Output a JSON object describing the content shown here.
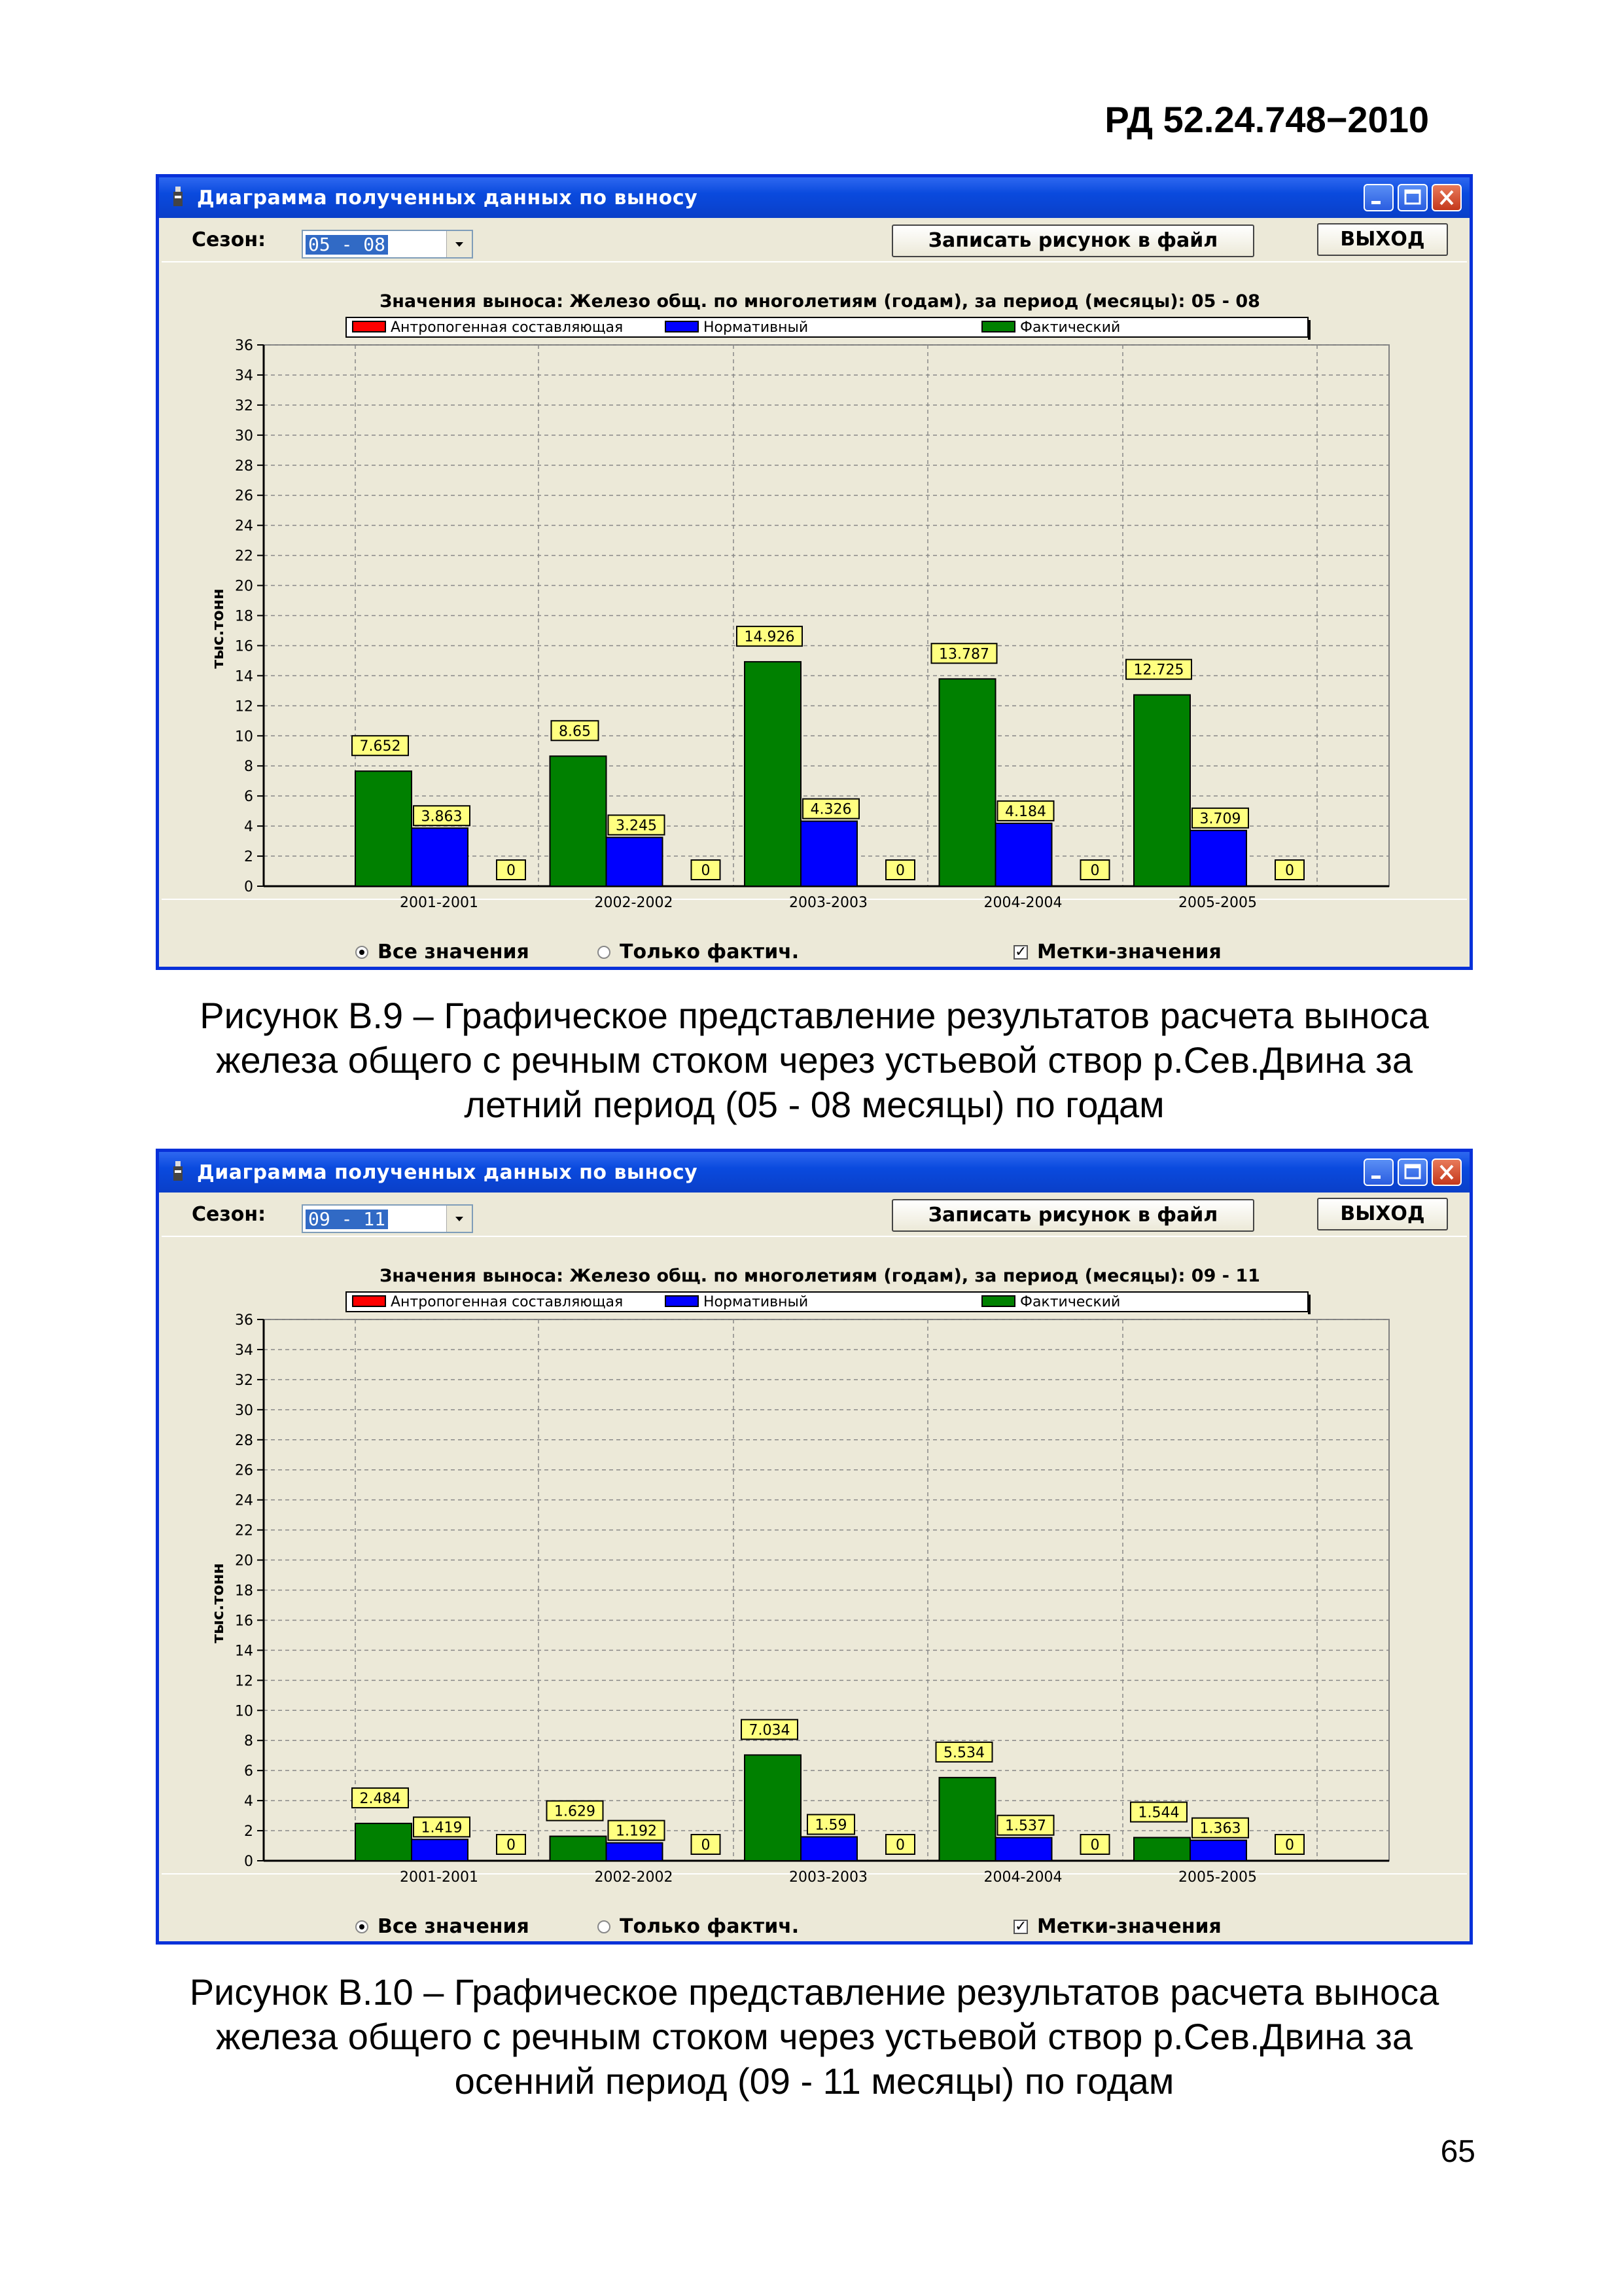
{
  "header": {
    "doc_code": "РД 52.24.748−2010"
  },
  "page_number": "65",
  "colors": {
    "anthropogenic": "#ff0000",
    "normative": "#0000ff",
    "actual": "#008000",
    "label_bg": "#ffff80",
    "titlebar": "#0a4ade"
  },
  "windows": [
    {
      "title": "Диаграмма полученных данных по выносу",
      "season_label": "Сезон:",
      "season_value": "05 - 08",
      "save_button": "Записать рисунок в файл",
      "exit_button": "ВЫХОД",
      "radio_all": "Все значения",
      "radio_actual_only": "Только фактич.",
      "checkbox_labels": "Метки-значения",
      "caption": "Рисунок В.9 – Графическое представление результатов расчета выноса железа общего с речным стоком через устьевой створ р.Сев.Двина за летний период (05 - 08 месяцы) по годам",
      "chart_data": {
        "type": "bar",
        "title": "Значения выноса: Железо общ. по многолетиям (годам), за период (месяцы): 05 - 08",
        "ylabel": "тыс.тонн",
        "ylim": [
          0,
          36
        ],
        "yticks": [
          0,
          2,
          4,
          6,
          8,
          10,
          12,
          14,
          16,
          18,
          20,
          22,
          24,
          26,
          28,
          30,
          32,
          34,
          36
        ],
        "grid": true,
        "legend_position": "top",
        "categories": [
          "2001-2001",
          "2002-2002",
          "2003-2003",
          "2004-2004",
          "2005-2005"
        ],
        "series": [
          {
            "name": "Антропогенная составляющая",
            "color": "#ff0000",
            "values": [
              0,
              0,
              0,
              0,
              0
            ]
          },
          {
            "name": "Нормативный",
            "color": "#0000ff",
            "values": [
              3.863,
              3.245,
              4.326,
              4.184,
              3.709
            ]
          },
          {
            "name": "Фактический",
            "color": "#008000",
            "values": [
              7.652,
              8.65,
              14.926,
              13.787,
              12.725
            ]
          }
        ],
        "data_labels": {
          "actual": [
            "7.652",
            "8.65",
            "14.926",
            "13.787",
            "12.725"
          ],
          "normative": [
            "3.863",
            "3.245",
            "4.326",
            "4.184",
            "3.709"
          ],
          "anthropogenic": [
            "0",
            "0",
            "0",
            "0",
            "0"
          ]
        }
      }
    },
    {
      "title": "Диаграмма полученных данных по выносу",
      "season_label": "Сезон:",
      "season_value": "09 - 11",
      "save_button": "Записать рисунок в файл",
      "exit_button": "ВЫХОД",
      "radio_all": "Все значения",
      "radio_actual_only": "Только фактич.",
      "checkbox_labels": "Метки-значения",
      "caption": "Рисунок В.10 – Графическое представление результатов расчета выноса железа общего с речным стоком через устьевой створ р.Сев.Двина за осенний период (09 - 11 месяцы) по годам",
      "chart_data": {
        "type": "bar",
        "title": "Значения выноса: Железо общ. по многолетиям (годам), за период (месяцы): 09 - 11",
        "ylabel": "тыс.тонн",
        "ylim": [
          0,
          36
        ],
        "yticks": [
          0,
          2,
          4,
          6,
          8,
          10,
          12,
          14,
          16,
          18,
          20,
          22,
          24,
          26,
          28,
          30,
          32,
          34,
          36
        ],
        "grid": true,
        "legend_position": "top",
        "categories": [
          "2001-2001",
          "2002-2002",
          "2003-2003",
          "2004-2004",
          "2005-2005"
        ],
        "series": [
          {
            "name": "Антропогенная составляющая",
            "color": "#ff0000",
            "values": [
              0,
              0,
              0,
              0,
              0
            ]
          },
          {
            "name": "Нормативный",
            "color": "#0000ff",
            "values": [
              1.419,
              1.192,
              1.59,
              1.537,
              1.363
            ]
          },
          {
            "name": "Фактический",
            "color": "#008000",
            "values": [
              2.484,
              1.629,
              7.034,
              5.534,
              1.544
            ]
          }
        ],
        "data_labels": {
          "actual": [
            "2.484",
            "1.629",
            "7.034",
            "5.534",
            "1.544"
          ],
          "normative": [
            "1.419",
            "1.192",
            "1.59",
            "1.537",
            "1.363"
          ],
          "anthropogenic": [
            "0",
            "0",
            "0",
            "0",
            "0"
          ]
        }
      }
    }
  ]
}
